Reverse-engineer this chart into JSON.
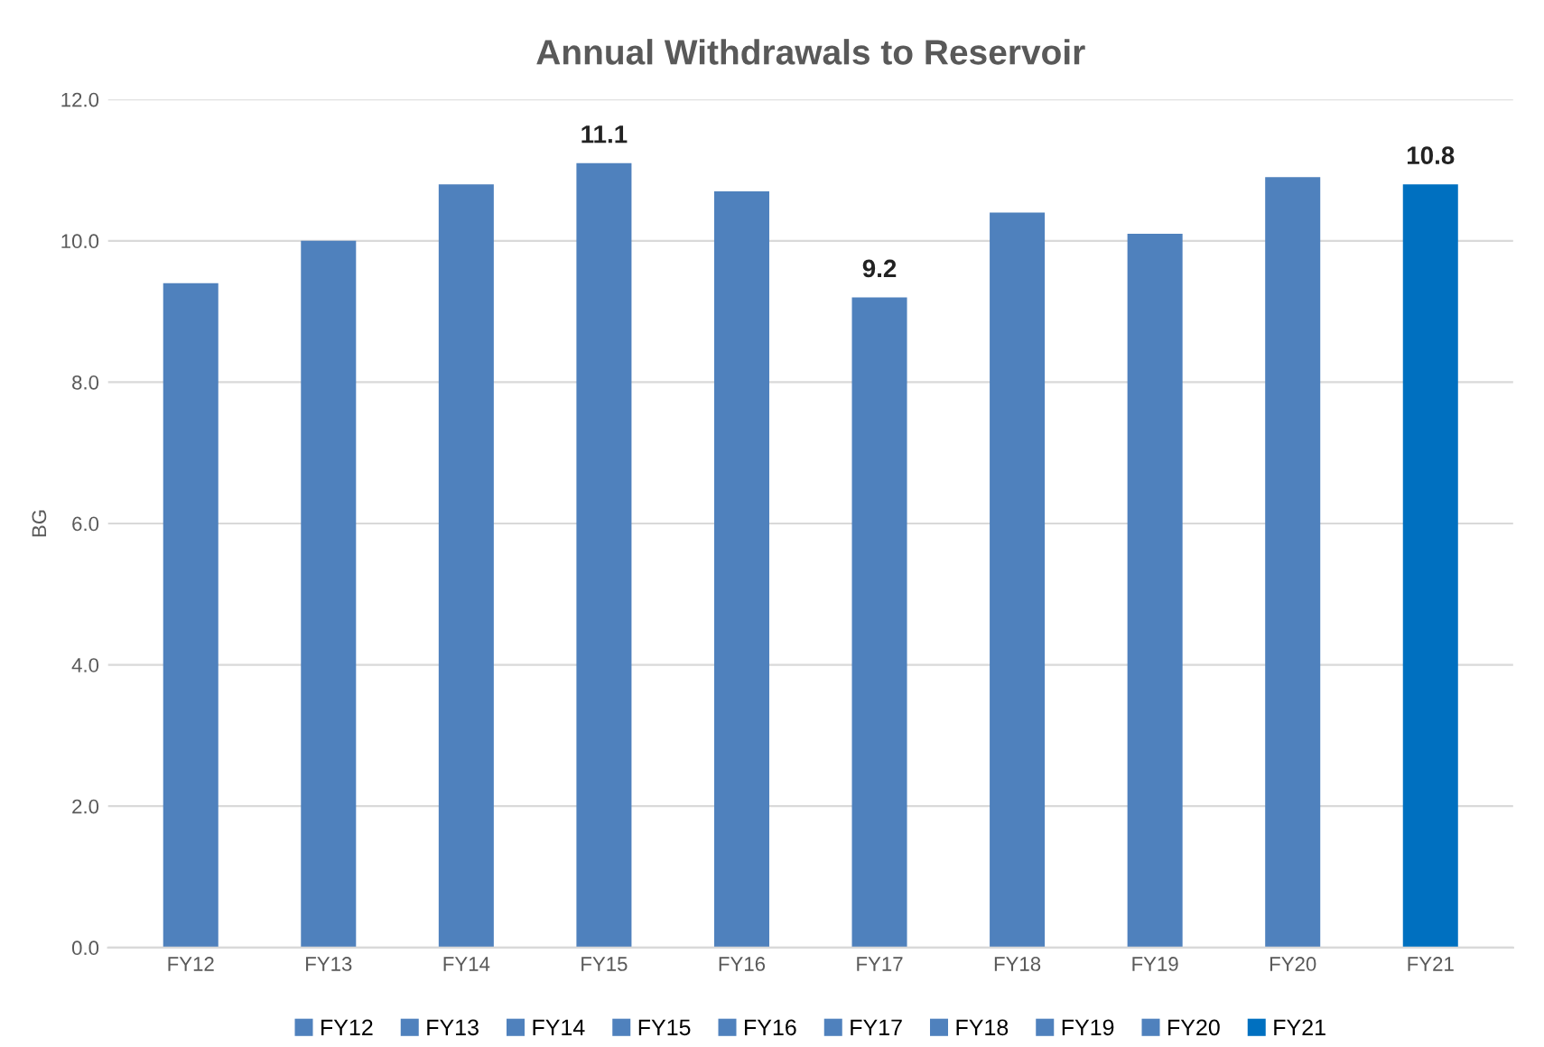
{
  "chart_data": {
    "type": "bar",
    "title": "Annual Withdrawals to Reservoir",
    "ylabel": "BG",
    "categories": [
      "FY12",
      "FY13",
      "FY14",
      "FY15",
      "FY16",
      "FY17",
      "FY18",
      "FY19",
      "FY20",
      "FY21"
    ],
    "series": [
      {
        "name": "FY12",
        "color": "#4f81bd",
        "values": [
          9.4,
          null,
          null,
          null,
          null,
          null,
          null,
          null,
          null,
          null
        ]
      },
      {
        "name": "FY13",
        "color": "#4f81bd",
        "values": [
          null,
          10.0,
          null,
          null,
          null,
          null,
          null,
          null,
          null,
          null
        ]
      },
      {
        "name": "FY14",
        "color": "#4f81bd",
        "values": [
          null,
          null,
          10.8,
          null,
          null,
          null,
          null,
          null,
          null,
          null
        ]
      },
      {
        "name": "FY15",
        "color": "#4f81bd",
        "values": [
          null,
          null,
          null,
          11.1,
          null,
          null,
          null,
          null,
          null,
          null
        ],
        "value_labels": [
          null,
          null,
          null,
          "11.1",
          null,
          null,
          null,
          null,
          null,
          null
        ]
      },
      {
        "name": "FY16",
        "color": "#4f81bd",
        "values": [
          null,
          null,
          null,
          null,
          10.7,
          null,
          null,
          null,
          null,
          null
        ]
      },
      {
        "name": "FY17",
        "color": "#4f81bd",
        "values": [
          null,
          null,
          null,
          null,
          null,
          9.2,
          null,
          null,
          null,
          null
        ],
        "value_labels": [
          null,
          null,
          null,
          null,
          null,
          "9.2",
          null,
          null,
          null,
          null
        ]
      },
      {
        "name": "FY18",
        "color": "#4f81bd",
        "values": [
          null,
          null,
          null,
          null,
          null,
          null,
          10.4,
          null,
          null,
          null
        ]
      },
      {
        "name": "FY19",
        "color": "#4f81bd",
        "values": [
          null,
          null,
          null,
          null,
          null,
          null,
          null,
          10.1,
          null,
          null
        ]
      },
      {
        "name": "FY20",
        "color": "#4f81bd",
        "values": [
          null,
          null,
          null,
          null,
          null,
          null,
          null,
          null,
          10.9,
          null
        ]
      },
      {
        "name": "FY21",
        "color": "#0070c0",
        "values": [
          null,
          null,
          null,
          null,
          null,
          null,
          null,
          null,
          null,
          10.8
        ],
        "value_labels": [
          null,
          null,
          null,
          null,
          null,
          null,
          null,
          null,
          null,
          "10.8"
        ]
      }
    ],
    "ylim": [
      0,
      12
    ],
    "yticks": [
      {
        "value": 0,
        "label": "0.0"
      },
      {
        "value": 2,
        "label": "2.0"
      },
      {
        "value": 4,
        "label": "4.0"
      },
      {
        "value": 6,
        "label": "6.0"
      },
      {
        "value": 8,
        "label": "8.0"
      },
      {
        "value": 10,
        "label": "10.0"
      },
      {
        "value": 12,
        "label": "12.0"
      }
    ],
    "grid": "y",
    "legend": "bottom"
  }
}
